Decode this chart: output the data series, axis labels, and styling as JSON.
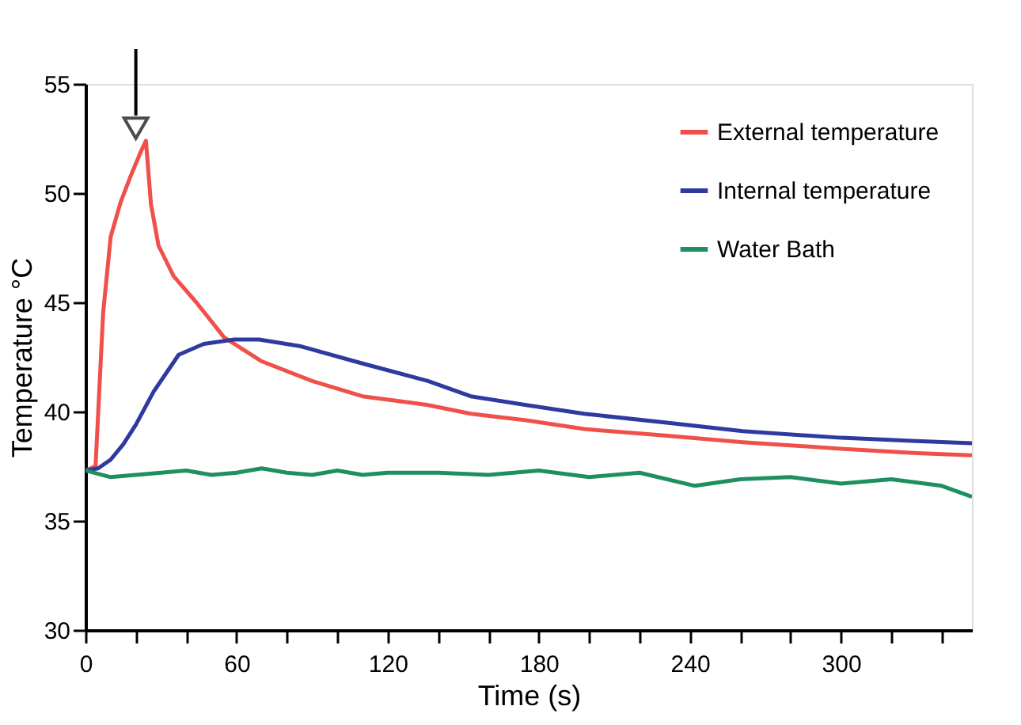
{
  "chart_data": {
    "type": "line",
    "xlabel": "Time (s)",
    "ylabel": "Temperature °C",
    "xlim": [
      0,
      352
    ],
    "ylim": [
      30,
      55
    ],
    "xticks": [
      0,
      {
        "value": 20,
        "label": null
      },
      {
        "value": 40,
        "label": null
      },
      60,
      {
        "value": 80,
        "label": null
      },
      {
        "value": 100,
        "label": null
      },
      120,
      {
        "value": 140,
        "label": null
      },
      {
        "value": 160,
        "label": null
      },
      180,
      {
        "value": 200,
        "label": null
      },
      {
        "value": 220,
        "label": null
      },
      240,
      {
        "value": 260,
        "label": null
      },
      {
        "value": 280,
        "label": null
      },
      300,
      {
        "value": 320,
        "label": null
      },
      {
        "value": 340,
        "label": null
      }
    ],
    "yticks": [
      30,
      35,
      40,
      45,
      50,
      55
    ],
    "grid": false,
    "legend": "top right",
    "marker": "none",
    "line_style": "solid",
    "series": [
      {
        "name": "External temperature",
        "color": "#f0504a",
        "x": [
          0,
          4,
          7,
          10,
          14,
          18,
          22,
          24,
          26,
          29,
          35,
          44,
          55,
          70,
          90,
          110,
          136,
          153,
          175,
          198,
          230,
          261,
          300,
          330,
          352
        ],
        "values": [
          37.3,
          37.5,
          44.5,
          48.0,
          49.6,
          50.8,
          51.9,
          52.4,
          49.5,
          47.6,
          46.2,
          45.0,
          43.4,
          42.3,
          41.4,
          40.7,
          40.3,
          39.9,
          39.6,
          39.2,
          38.9,
          38.6,
          38.3,
          38.1,
          38.0
        ]
      },
      {
        "name": "Internal temperature",
        "color": "#2f3aa0",
        "x": [
          0,
          5,
          10,
          15,
          20,
          27,
          37,
          47,
          59,
          69,
          85,
          110,
          136,
          153,
          175,
          198,
          230,
          261,
          300,
          330,
          352
        ],
        "values": [
          37.3,
          37.4,
          37.8,
          38.5,
          39.4,
          40.9,
          42.6,
          43.1,
          43.3,
          43.3,
          43.0,
          42.2,
          41.4,
          40.7,
          40.3,
          39.9,
          39.5,
          39.1,
          38.8,
          38.65,
          38.55
        ]
      },
      {
        "name": "Water Bath",
        "color": "#1e9060",
        "x": [
          0,
          10,
          20,
          30,
          40,
          50,
          60,
          70,
          80,
          90,
          100,
          110,
          120,
          140,
          160,
          180,
          200,
          220,
          242,
          260,
          280,
          300,
          320,
          340,
          352
        ],
        "values": [
          37.3,
          37.0,
          37.1,
          37.2,
          37.3,
          37.1,
          37.2,
          37.4,
          37.2,
          37.1,
          37.3,
          37.1,
          37.2,
          37.2,
          37.1,
          37.3,
          37.0,
          37.2,
          36.6,
          36.9,
          37.0,
          36.7,
          36.9,
          36.6,
          36.1
        ]
      }
    ]
  }
}
